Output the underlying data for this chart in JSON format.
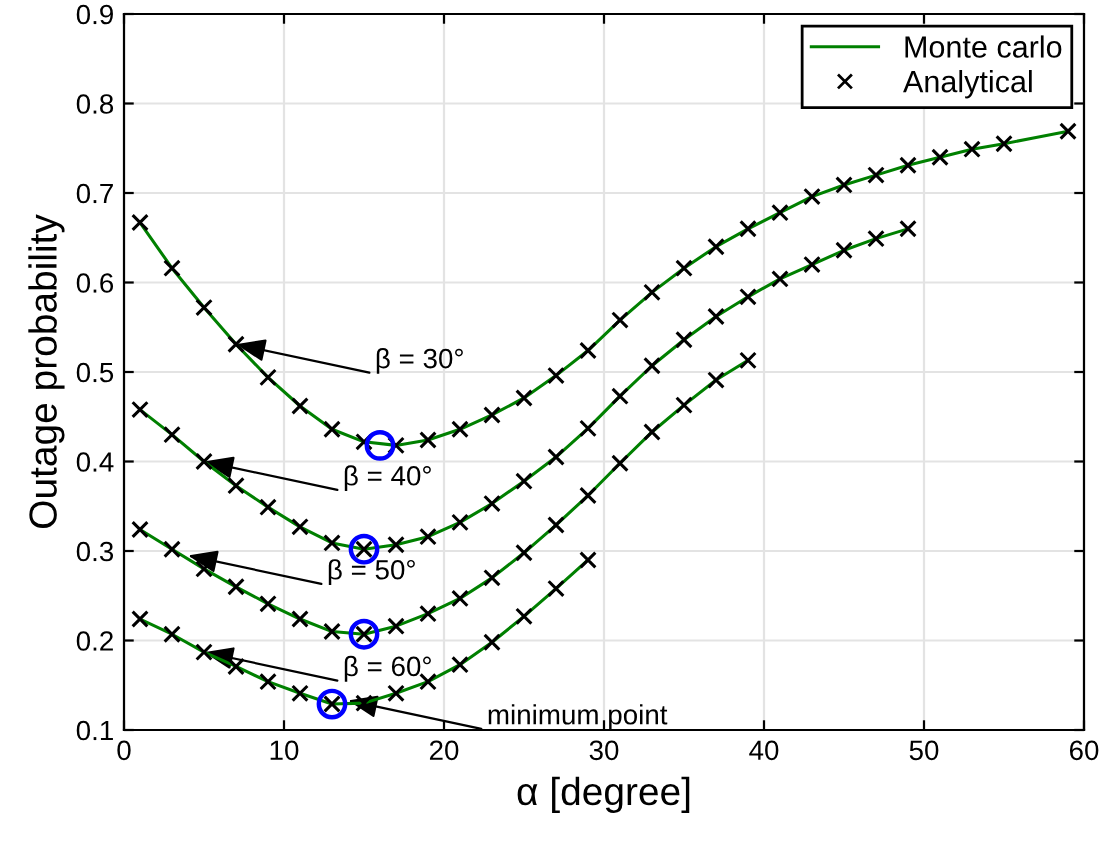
{
  "chart_data": {
    "type": "line",
    "xlabel": "α [degree]",
    "ylabel": "Outage probability",
    "xlim": [
      0,
      60
    ],
    "xticks": [
      0,
      10,
      20,
      30,
      40,
      50,
      60
    ],
    "ylim": [
      0.1,
      0.9
    ],
    "yticks": [
      0.1,
      0.2,
      0.3,
      0.4,
      0.5,
      0.6,
      0.7,
      0.8,
      0.9
    ],
    "grid": true,
    "legend": "top right",
    "series": [
      {
        "name": "Monte carlo",
        "color": "#008000",
        "marker": "none",
        "x": [
          1,
          3,
          5,
          7,
          9,
          11,
          13,
          15,
          17,
          19,
          21,
          23,
          25,
          27,
          29,
          31,
          33,
          35,
          37,
          39,
          41,
          43,
          45,
          47,
          49,
          51,
          53,
          55,
          57,
          59
        ],
        "values": [
          0.667,
          0.616,
          0.572,
          0.531,
          0.494,
          0.462,
          0.436,
          0.422,
          0.418,
          0.424,
          0.436,
          0.452,
          0.471,
          0.496,
          0.524,
          0.558,
          0.589,
          0.616,
          0.64,
          0.66,
          0.678,
          0.696,
          0.709,
          0.72,
          0.731,
          0.74,
          0.749,
          0.755,
          0.762,
          0.769
        ]
      },
      {
        "type": "line",
        "color": "#008000",
        "marker": "none",
        "x": [
          1,
          3,
          5,
          7,
          9,
          11,
          13,
          15,
          17,
          19,
          21,
          23,
          25,
          27,
          29,
          31,
          33,
          35,
          37,
          39,
          41,
          43,
          45,
          47,
          49
        ],
        "values": [
          0.458,
          0.43,
          0.4,
          0.373,
          0.349,
          0.327,
          0.309,
          0.302,
          0.307,
          0.316,
          0.332,
          0.353,
          0.378,
          0.405,
          0.437,
          0.473,
          0.507,
          0.536,
          0.562,
          0.584,
          0.604,
          0.62,
          0.636,
          0.649,
          0.66
        ]
      },
      {
        "type": "line",
        "color": "#008000",
        "marker": "none",
        "x": [
          1,
          3,
          5,
          7,
          9,
          11,
          13,
          15,
          17,
          19,
          21,
          23,
          25,
          27,
          29,
          31,
          33,
          35,
          37,
          39
        ],
        "values": [
          0.324,
          0.302,
          0.28,
          0.26,
          0.241,
          0.224,
          0.21,
          0.207,
          0.216,
          0.23,
          0.247,
          0.27,
          0.298,
          0.329,
          0.362,
          0.398,
          0.433,
          0.463,
          0.491,
          0.513
        ]
      },
      {
        "type": "line",
        "color": "#008000",
        "marker": "none",
        "x": [
          1,
          3,
          5,
          7,
          9,
          11,
          13,
          15,
          17,
          19,
          21,
          23,
          25,
          27,
          29
        ],
        "values": [
          0.224,
          0.207,
          0.187,
          0.171,
          0.154,
          0.141,
          0.129,
          0.13,
          0.141,
          0.154,
          0.173,
          0.198,
          0.227,
          0.258,
          0.29
        ]
      },
      {
        "name": "Analytical",
        "type": "scatter",
        "color": "#000000",
        "marker": "cross",
        "x": [
          1,
          3,
          5,
          7,
          9,
          11,
          13,
          15,
          17,
          19,
          21,
          23,
          25,
          27,
          29,
          31,
          33,
          35,
          37,
          39,
          41,
          43,
          45,
          47,
          49,
          51,
          53,
          55,
          57,
          59
        ],
        "values": [
          0.667,
          0.616,
          0.572,
          0.531,
          0.494,
          0.462,
          0.436,
          0.422,
          0.418,
          0.424,
          0.436,
          0.452,
          0.471,
          0.496,
          0.524,
          0.558,
          0.589,
          0.616,
          0.64,
          0.66,
          0.678,
          0.696,
          0.709,
          0.72,
          0.731,
          0.74,
          0.749,
          0.755,
          null,
          0.769
        ]
      },
      {
        "type": "scatter",
        "color": "#000000",
        "marker": "cross",
        "x": [
          1,
          3,
          5,
          7,
          9,
          11,
          13,
          15,
          17,
          19,
          21,
          23,
          25,
          27,
          29,
          31,
          33,
          35,
          37,
          39,
          41,
          43,
          45,
          47,
          49
        ],
        "values": [
          0.458,
          0.43,
          0.4,
          0.373,
          0.349,
          0.327,
          0.309,
          0.302,
          0.307,
          0.316,
          0.332,
          0.353,
          0.378,
          0.405,
          0.437,
          0.473,
          0.507,
          0.536,
          0.562,
          0.584,
          0.604,
          0.62,
          0.636,
          0.649,
          0.66
        ]
      },
      {
        "type": "scatter",
        "color": "#000000",
        "marker": "cross",
        "x": [
          1,
          3,
          5,
          7,
          9,
          11,
          13,
          15,
          17,
          19,
          21,
          23,
          25,
          27,
          29,
          31,
          33,
          35,
          37,
          39
        ],
        "values": [
          0.324,
          0.302,
          0.28,
          0.26,
          0.241,
          0.224,
          0.21,
          0.207,
          0.216,
          0.23,
          0.247,
          0.27,
          0.298,
          0.329,
          0.362,
          0.398,
          0.433,
          0.463,
          0.491,
          0.513
        ]
      },
      {
        "type": "scatter",
        "color": "#000000",
        "marker": "cross",
        "x": [
          1,
          3,
          5,
          7,
          9,
          11,
          13,
          15,
          17,
          19,
          21,
          23,
          25,
          27,
          29
        ],
        "values": [
          0.224,
          0.207,
          0.187,
          0.171,
          0.154,
          0.141,
          0.129,
          0.13,
          0.141,
          0.154,
          0.173,
          0.198,
          0.227,
          0.258,
          0.29
        ]
      },
      {
        "type": "scatter",
        "color": "#0000ff",
        "marker": "circle",
        "x": [
          16,
          15,
          15,
          13
        ],
        "values": [
          0.418,
          0.302,
          0.207,
          0.129
        ]
      }
    ],
    "annotations": [
      {
        "text": "β = 30°",
        "x": 7,
        "y": 0.531
      },
      {
        "text": "β = 40°",
        "x": 5,
        "y": 0.4
      },
      {
        "text": "β = 50°",
        "x": 4,
        "y": 0.295
      },
      {
        "text": "β = 60°",
        "x": 5,
        "y": 0.187
      },
      {
        "text": "minimum point",
        "x": 14,
        "y": 0.133
      }
    ]
  }
}
